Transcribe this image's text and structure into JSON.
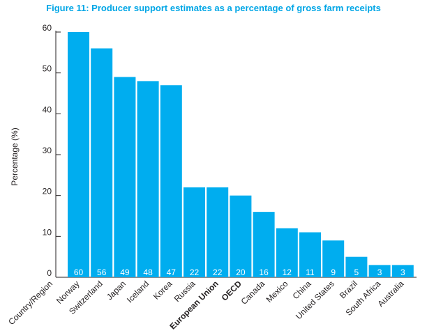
{
  "chart_data": {
    "type": "bar",
    "title": "Figure 11: Producer support estimates as a percentage of gross farm receipts",
    "ylabel": "Percentage (%)",
    "xlabel": "Country/Region",
    "ylim": [
      0,
      60
    ],
    "yticks": [
      0,
      10,
      20,
      30,
      40,
      50,
      60
    ],
    "categories": [
      "Norway",
      "Switzerland",
      "Japan",
      "Iceland",
      "Korea",
      "Russia",
      "European Union",
      "OECD",
      "Canada",
      "Mexico",
      "China",
      "United States",
      "Brazil",
      "South Africa",
      "Australia"
    ],
    "values": [
      60,
      56,
      49,
      48,
      47,
      22,
      22,
      20,
      16,
      12,
      11,
      9,
      5,
      3,
      3
    ],
    "bold_categories": [
      "European Union",
      "OECD"
    ],
    "bar_color": "#00adef",
    "title_color": "#00a6e6",
    "data_labels": true,
    "grid": false,
    "legend": "none"
  }
}
